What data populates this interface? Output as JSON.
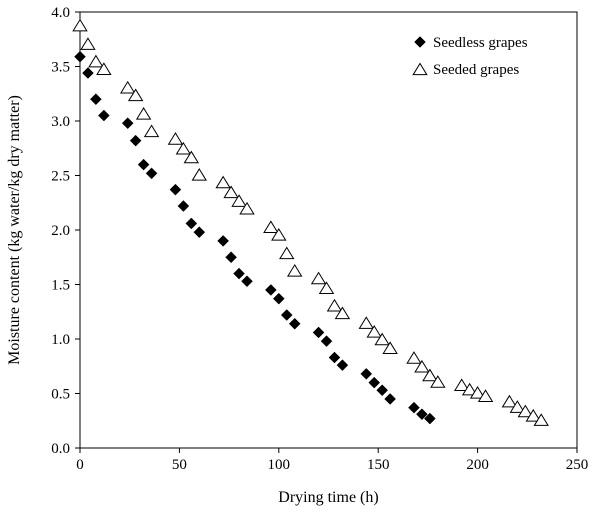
{
  "chart_data": {
    "type": "scatter",
    "title": "",
    "xlabel": "Drying time (h)",
    "ylabel": "Moisture content (kg water/kg dry matter)",
    "xlim": [
      0,
      250
    ],
    "ylim": [
      0,
      4.0
    ],
    "xticks": [
      0,
      50,
      100,
      150,
      200,
      250
    ],
    "yticks": [
      0.0,
      0.5,
      1.0,
      1.5,
      2.0,
      2.5,
      3.0,
      3.5,
      4.0
    ],
    "xtick_labels": [
      "0",
      "50",
      "100",
      "150",
      "200",
      "250"
    ],
    "ytick_labels": [
      "0.0",
      "0.5",
      "1.0",
      "1.5",
      "2.0",
      "2.5",
      "3.0",
      "3.5",
      "4.0"
    ],
    "grid": false,
    "legend_position": "top-right",
    "series": [
      {
        "name": "Seedless grapes",
        "marker": "filled-diamond",
        "color": "#000000",
        "points": [
          [
            0,
            3.59
          ],
          [
            4,
            3.44
          ],
          [
            8,
            3.2
          ],
          [
            12,
            3.05
          ],
          [
            24,
            2.98
          ],
          [
            28,
            2.82
          ],
          [
            32,
            2.6
          ],
          [
            36,
            2.52
          ],
          [
            48,
            2.37
          ],
          [
            52,
            2.22
          ],
          [
            56,
            2.06
          ],
          [
            60,
            1.98
          ],
          [
            72,
            1.9
          ],
          [
            76,
            1.75
          ],
          [
            80,
            1.6
          ],
          [
            84,
            1.53
          ],
          [
            96,
            1.45
          ],
          [
            100,
            1.37
          ],
          [
            104,
            1.22
          ],
          [
            108,
            1.14
          ],
          [
            120,
            1.06
          ],
          [
            124,
            0.98
          ],
          [
            128,
            0.83
          ],
          [
            132,
            0.76
          ],
          [
            144,
            0.68
          ],
          [
            148,
            0.6
          ],
          [
            152,
            0.53
          ],
          [
            156,
            0.45
          ],
          [
            168,
            0.37
          ],
          [
            172,
            0.31
          ],
          [
            176,
            0.27
          ]
        ]
      },
      {
        "name": "Seeded grapes",
        "marker": "open-triangle",
        "color": "#000000",
        "points": [
          [
            0,
            3.87
          ],
          [
            4,
            3.7
          ],
          [
            8,
            3.54
          ],
          [
            12,
            3.47
          ],
          [
            24,
            3.3
          ],
          [
            28,
            3.23
          ],
          [
            32,
            3.06
          ],
          [
            36,
            2.9
          ],
          [
            48,
            2.83
          ],
          [
            52,
            2.74
          ],
          [
            56,
            2.66
          ],
          [
            60,
            2.5
          ],
          [
            72,
            2.43
          ],
          [
            76,
            2.34
          ],
          [
            80,
            2.26
          ],
          [
            84,
            2.19
          ],
          [
            96,
            2.02
          ],
          [
            100,
            1.95
          ],
          [
            104,
            1.78
          ],
          [
            108,
            1.62
          ],
          [
            120,
            1.55
          ],
          [
            124,
            1.46
          ],
          [
            128,
            1.3
          ],
          [
            132,
            1.23
          ],
          [
            144,
            1.14
          ],
          [
            148,
            1.06
          ],
          [
            152,
            0.99
          ],
          [
            156,
            0.91
          ],
          [
            168,
            0.82
          ],
          [
            172,
            0.74
          ],
          [
            176,
            0.66
          ],
          [
            180,
            0.6
          ],
          [
            192,
            0.57
          ],
          [
            196,
            0.53
          ],
          [
            200,
            0.5
          ],
          [
            204,
            0.47
          ],
          [
            216,
            0.42
          ],
          [
            220,
            0.37
          ],
          [
            224,
            0.33
          ],
          [
            228,
            0.29
          ],
          [
            232,
            0.25
          ]
        ]
      }
    ]
  }
}
